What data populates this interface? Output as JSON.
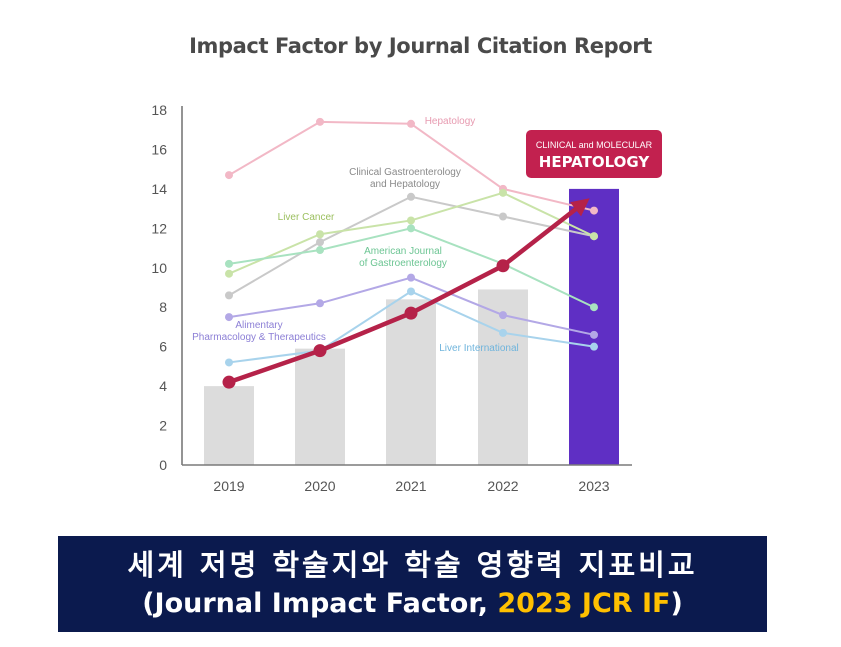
{
  "chart_data": {
    "type": "bar",
    "title": "Impact Factor by Journal Citation Report",
    "categories": [
      "2019",
      "2020",
      "2021",
      "2022",
      "2023"
    ],
    "values": [
      4.0,
      5.9,
      8.4,
      8.9,
      14.0
    ],
    "ylim": [
      0,
      18
    ],
    "yticks": [
      "0",
      "2",
      "4",
      "6",
      "8",
      "10",
      "12",
      "14",
      "16",
      "18"
    ],
    "grid": false,
    "highlight": {
      "label_small": "CLINICAL and MOLECULAR",
      "label_big": "HEPATOLOGY",
      "trend_values": [
        4.2,
        5.8,
        7.7,
        10.1,
        13.3
      ]
    },
    "series": [
      {
        "name": "Hepatology",
        "color": "#f2b8c6",
        "values": [
          14.7,
          17.4,
          17.3,
          14.0,
          12.9
        ]
      },
      {
        "name": "Clinical Gastroenterology and Hepatology",
        "color": "#c9c9c9",
        "values": [
          8.6,
          11.3,
          13.6,
          12.6,
          11.6
        ]
      },
      {
        "name": "Liver Cancer",
        "color": "#c9e3a8",
        "values": [
          9.7,
          11.7,
          12.4,
          13.8,
          11.6
        ]
      },
      {
        "name": "American Journal of Gastroenterology",
        "color": "#a8e2c0",
        "values": [
          10.2,
          10.9,
          12.0,
          10.2,
          8.0
        ]
      },
      {
        "name": "Alimentary Pharmacology & Therapeutics",
        "color": "#b3a8e6",
        "values": [
          7.5,
          8.2,
          9.5,
          7.6,
          6.6
        ]
      },
      {
        "name": "Liver International",
        "color": "#a8d3ec",
        "values": [
          5.2,
          5.8,
          8.8,
          6.7,
          6.0
        ]
      }
    ]
  },
  "banner": {
    "line1": "세계 저명 학술지와 학술 영향력 지표비교",
    "line2_prefix": "(Journal Impact Factor, ",
    "line2_highlight": "2023 JCR IF",
    "line2_suffix": ")"
  }
}
